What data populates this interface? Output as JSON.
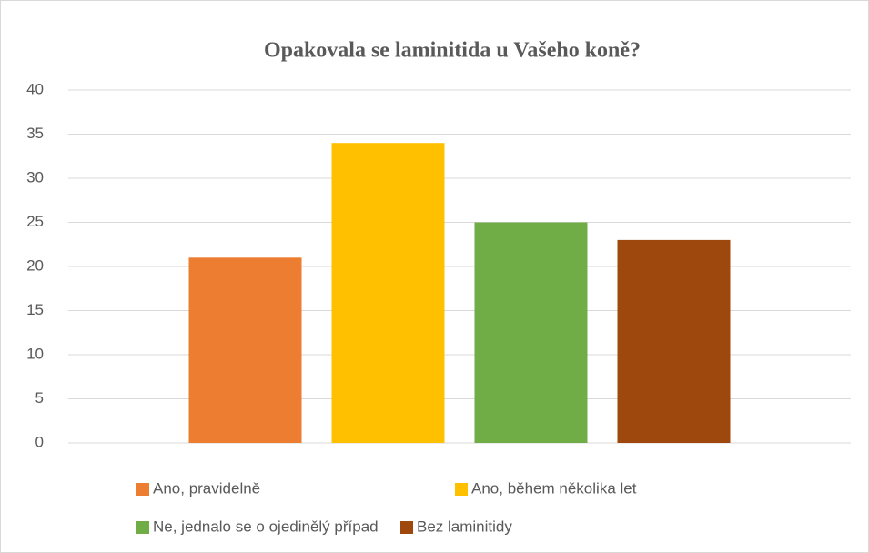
{
  "chart_data": {
    "type": "bar",
    "title": "Opakovala se laminitida u Vašeho koně?",
    "categories": [
      null
    ],
    "series": [
      {
        "name": "Ano, pravidelně",
        "color": "#ed7d31",
        "values": [
          21
        ]
      },
      {
        "name": "Ano, během několika let",
        "color": "#ffc000",
        "values": [
          34
        ]
      },
      {
        "name": "Ne, jednalo se o ojedinělý případ",
        "color": "#70ad47",
        "values": [
          25
        ]
      },
      {
        "name": "Bez laminitidy",
        "color": "#9e480e",
        "values": [
          23
        ]
      }
    ],
    "ylim": [
      0,
      40
    ],
    "yticks": [
      0,
      5,
      10,
      15,
      20,
      25,
      30,
      35,
      40
    ],
    "grid": true,
    "legend": "bottom"
  }
}
